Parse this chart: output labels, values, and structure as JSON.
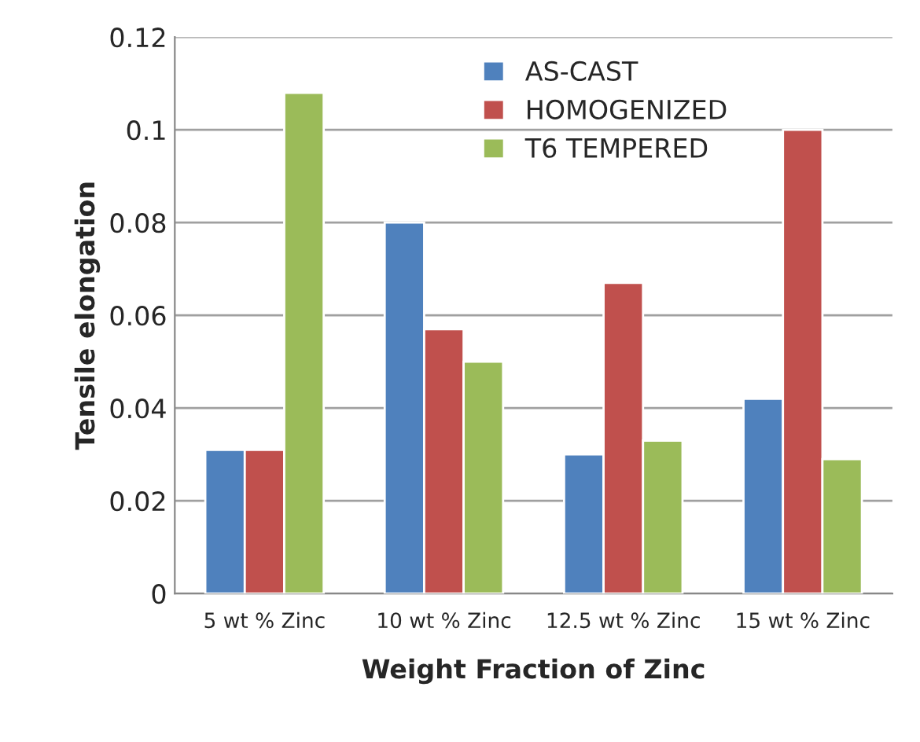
{
  "chart_data": {
    "type": "bar",
    "xlabel": "Weight Fraction of Zinc",
    "ylabel": "Tensile elongation",
    "categories": [
      "5 wt % Zinc",
      "10 wt % Zinc",
      "12.5 wt % Zinc",
      "15 wt % Zinc"
    ],
    "series": [
      {
        "name": "AS-CAST",
        "color": "#4f81bd",
        "values": [
          0.031,
          0.08,
          0.03,
          0.042
        ]
      },
      {
        "name": "HOMOGENIZED",
        "color": "#c0504d",
        "values": [
          0.031,
          0.057,
          0.067,
          0.1
        ]
      },
      {
        "name": "T6 TEMPERED",
        "color": "#9bbb59",
        "values": [
          0.108,
          0.05,
          0.033,
          0.029
        ]
      }
    ],
    "ylim": [
      0,
      0.12
    ],
    "yticks": [
      0,
      0.02,
      0.04,
      0.06,
      0.08,
      0.1,
      0.12
    ],
    "grid": "y",
    "legend": "top"
  }
}
